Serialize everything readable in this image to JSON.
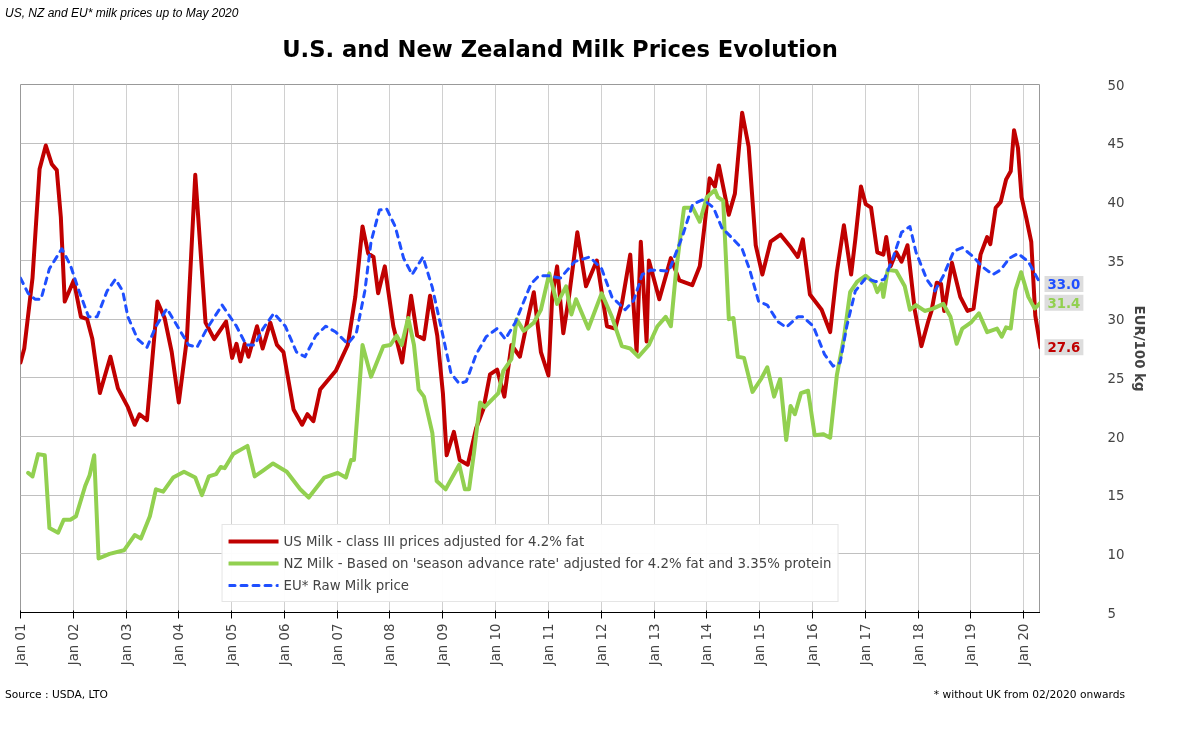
{
  "chart_data": {
    "type": "line",
    "title": "U.S. and New Zealand Milk Prices Evolution",
    "ylabel": "EUR/100 kg",
    "xlim": [
      "2001-01-01",
      "2020-04-27"
    ],
    "ylim": [
      5,
      50
    ],
    "yticks": [
      5,
      10,
      15,
      20,
      25,
      30,
      35,
      40,
      45,
      50
    ],
    "xticks": [
      {
        "value": "2001-01-01",
        "label": "Jan 01"
      },
      {
        "value": "2002-01-01",
        "label": "Jan 02"
      },
      {
        "value": "2003-01-01",
        "label": "Jan 03"
      },
      {
        "value": "2004-01-01",
        "label": "Jan 04"
      },
      {
        "value": "2005-01-01",
        "label": "Jan 05"
      },
      {
        "value": "2006-01-01",
        "label": "Jan 06"
      },
      {
        "value": "2007-01-01",
        "label": "Jan 07"
      },
      {
        "value": "2008-01-01",
        "label": "Jan 08"
      },
      {
        "value": "2009-01-01",
        "label": "Jan 09"
      },
      {
        "value": "2010-01-01",
        "label": "Jan 10"
      },
      {
        "value": "2011-01-01",
        "label": "Jan 11"
      },
      {
        "value": "2012-01-01",
        "label": "Jan 12"
      },
      {
        "value": "2013-01-01",
        "label": "Jan 13"
      },
      {
        "value": "2014-01-01",
        "label": "Jan 14"
      },
      {
        "value": "2015-01-01",
        "label": "Jan 15"
      },
      {
        "value": "2016-01-01",
        "label": "Jan 16"
      },
      {
        "value": "2017-01-01",
        "label": "Jan 17"
      },
      {
        "value": "2018-01-01",
        "label": "Jan 18"
      },
      {
        "value": "2019-01-01",
        "label": "Jan 19"
      },
      {
        "value": "2020-01-01",
        "label": "Jan 20"
      }
    ],
    "grid": true,
    "legend": "bottom",
    "series": [
      {
        "name": "US Milk - class III prices adjusted for 4.2% fat",
        "color": "#c00000",
        "line_style": "solid",
        "x": [
          "2001-01-01",
          "2001-01-27",
          "2001-03-25",
          "2001-05-13",
          "2001-06-25",
          "2001-08-06",
          "2001-09-09",
          "2001-10-07",
          "2001-11-03",
          "2002-01-04",
          "2002-02-23",
          "2002-04-07",
          "2002-05-13",
          "2002-07-04",
          "2002-09-15",
          "2002-11-06",
          "2003-01-14",
          "2003-03-02",
          "2003-04-04",
          "2003-05-26",
          "2003-08-06",
          "2003-09-25",
          "2003-11-13",
          "2004-01-01",
          "2004-02-26",
          "2004-04-24",
          "2004-07-04",
          "2004-09-02",
          "2004-11-23",
          "2005-01-04",
          "2005-02-03",
          "2005-03-02",
          "2005-04-01",
          "2005-04-27",
          "2005-06-25",
          "2005-08-03",
          "2005-09-25",
          "2005-11-10",
          "2005-12-25",
          "2006-03-05",
          "2006-05-03",
          "2006-06-09",
          "2006-07-20",
          "2006-09-05",
          "2006-12-22",
          "2007-03-15",
          "2007-05-06",
          "2007-06-25",
          "2007-08-03",
          "2007-09-09",
          "2007-10-11",
          "2007-11-26",
          "2008-01-24",
          "2008-03-25",
          "2008-05-26",
          "2008-07-07",
          "2008-08-23",
          "2008-10-04",
          "2008-11-23",
          "2009-01-01",
          "2009-01-27",
          "2009-03-18",
          "2009-04-27",
          "2009-06-22",
          "2009-08-19",
          "2009-10-07",
          "2009-11-23",
          "2010-01-11",
          "2010-03-02",
          "2010-04-20",
          "2010-06-18",
          "2010-08-06",
          "2010-09-22",
          "2010-11-10",
          "2011-01-01",
          "2011-01-27",
          "2011-03-02",
          "2011-04-14",
          "2011-05-23",
          "2011-07-20",
          "2011-09-18",
          "2011-12-02",
          "2012-02-10",
          "2012-04-07",
          "2012-05-23",
          "2012-07-20",
          "2012-09-02",
          "2012-10-01",
          "2012-11-10",
          "2012-11-26",
          "2013-02-06",
          "2013-04-27",
          "2013-06-25",
          "2013-09-22",
          "2013-11-13",
          "2013-12-18",
          "2014-01-20",
          "2014-02-26",
          "2014-03-25",
          "2014-06-02",
          "2014-07-14",
          "2014-09-02",
          "2014-10-17",
          "2014-12-05",
          "2015-01-20",
          "2015-03-18",
          "2015-05-26",
          "2015-08-06",
          "2015-09-22",
          "2015-10-27",
          "2015-12-15",
          "2016-03-05",
          "2016-05-03",
          "2016-06-18",
          "2016-08-06",
          "2016-09-25",
          "2016-10-24",
          "2016-12-02",
          "2017-01-04",
          "2017-02-10",
          "2017-03-25",
          "2017-05-06",
          "2017-05-26",
          "2017-06-25",
          "2017-08-03",
          "2017-09-09",
          "2017-10-20",
          "2017-12-09",
          "2018-01-24",
          "2018-03-12",
          "2018-04-04",
          "2018-05-10",
          "2018-06-09",
          "2018-07-01",
          "2018-08-23",
          "2018-10-20",
          "2018-12-09",
          "2019-01-20",
          "2019-03-09",
          "2019-04-24",
          "2019-05-16",
          "2019-06-22",
          "2019-07-27",
          "2019-09-02",
          "2019-10-04",
          "2019-10-27",
          "2019-11-23",
          "2019-12-18",
          "2020-01-20",
          "2020-02-23",
          "2020-03-22",
          "2020-04-27"
        ],
        "values": [
          26.3,
          27.5,
          33.5,
          42.8,
          44.8,
          43.2,
          42.7,
          38.7,
          31.5,
          33.3,
          30.2,
          30.0,
          28.3,
          23.7,
          26.8,
          24.1,
          22.5,
          21.0,
          21.9,
          21.4,
          31.5,
          30.1,
          27.2,
          22.9,
          28.3,
          42.3,
          29.7,
          28.3,
          29.8,
          26.7,
          27.9,
          26.4,
          27.9,
          26.8,
          29.4,
          27.5,
          29.7,
          27.8,
          27.2,
          22.3,
          21.0,
          21.9,
          21.3,
          24.0,
          25.6,
          27.8,
          31.9,
          37.9,
          35.6,
          35.3,
          32.2,
          34.5,
          29.4,
          26.3,
          32.0,
          28.6,
          28.3,
          32.0,
          28.6,
          23.7,
          18.4,
          20.4,
          18.0,
          17.6,
          20.7,
          22.3,
          25.3,
          25.7,
          23.4,
          27.8,
          26.8,
          29.7,
          32.3,
          27.2,
          25.2,
          31.9,
          34.5,
          28.8,
          31.9,
          37.4,
          32.8,
          35.0,
          29.4,
          29.2,
          31.3,
          35.5,
          27.2,
          36.6,
          28.1,
          35.0,
          31.7,
          35.2,
          33.3,
          32.9,
          34.5,
          38.2,
          42.0,
          41.3,
          43.1,
          38.9,
          40.7,
          47.6,
          44.7,
          36.3,
          33.8,
          36.6,
          37.2,
          36.1,
          35.3,
          36.8,
          32.1,
          30.8,
          28.9,
          34.0,
          38.0,
          33.8,
          36.8,
          41.3,
          39.8,
          39.5,
          35.7,
          35.5,
          37.0,
          34.5,
          35.7,
          34.9,
          36.3,
          30.8,
          27.7,
          29.8,
          30.7,
          33.1,
          33.0,
          30.7,
          34.8,
          31.9,
          30.7,
          30.9,
          35.5,
          37.0,
          36.4,
          39.5,
          40.0,
          41.9,
          42.6,
          46.1,
          44.6,
          40.4,
          38.6,
          36.6,
          30.3,
          27.6
        ]
      },
      {
        "name": "NZ Milk - Based on 'season advance rate' adjusted for 4.2% fat and 3.35% protein",
        "color": "#92d050",
        "line_style": "solid",
        "x": [
          "2001-02-23",
          "2001-03-25",
          "2001-05-03",
          "2001-06-18",
          "2001-07-20",
          "2001-09-18",
          "2001-10-27",
          "2001-12-12",
          "2002-01-20",
          "2002-03-25",
          "2002-04-24",
          "2002-05-26",
          "2002-06-25",
          "2002-08-03",
          "2002-09-09",
          "2002-12-18",
          "2003-03-02",
          "2003-04-14",
          "2003-06-15",
          "2003-07-27",
          "2003-09-15",
          "2003-11-23",
          "2004-02-06",
          "2004-04-24",
          "2004-06-09",
          "2004-07-27",
          "2004-09-15",
          "2004-10-17",
          "2004-11-13",
          "2005-01-11",
          "2005-04-20",
          "2005-06-09",
          "2005-08-06",
          "2005-10-14",
          "2006-01-17",
          "2006-04-20",
          "2006-06-18",
          "2006-10-04",
          "2007-01-04",
          "2007-03-02",
          "2007-04-07",
          "2007-04-27",
          "2007-06-25",
          "2007-08-23",
          "2007-11-16",
          "2008-01-04",
          "2008-02-16",
          "2008-03-22",
          "2008-05-06",
          "2008-06-15",
          "2008-07-17",
          "2008-08-23",
          "2008-10-20",
          "2008-11-19",
          "2009-01-20",
          "2009-04-24",
          "2009-06-02",
          "2009-07-01",
          "2009-08-03",
          "2009-09-15",
          "2009-10-17",
          "2010-01-20",
          "2010-02-23",
          "2010-04-20",
          "2010-05-26",
          "2010-07-14",
          "2010-09-22",
          "2010-11-10",
          "2011-01-07",
          "2011-03-02",
          "2011-05-03",
          "2011-06-09",
          "2011-07-11",
          "2011-10-04",
          "2012-01-04",
          "2012-03-15",
          "2012-05-23",
          "2012-07-20",
          "2012-09-15",
          "2012-11-26",
          "2013-01-24",
          "2013-03-22",
          "2013-04-27",
          "2013-06-02",
          "2013-07-27",
          "2013-09-25",
          "2013-11-13",
          "2014-01-01",
          "2014-02-26",
          "2014-03-18",
          "2014-04-24",
          "2014-06-02",
          "2014-07-04",
          "2014-08-03",
          "2014-09-15",
          "2014-11-13",
          "2015-01-11",
          "2015-02-23",
          "2015-04-11",
          "2015-05-23",
          "2015-07-04",
          "2015-08-03",
          "2015-09-02",
          "2015-10-14",
          "2015-12-02",
          "2016-01-17",
          "2016-03-15",
          "2016-05-03",
          "2016-06-18",
          "2016-08-06",
          "2016-09-18",
          "2016-11-06",
          "2017-01-04",
          "2017-03-02",
          "2017-03-25",
          "2017-04-24",
          "2017-05-06",
          "2017-06-05",
          "2017-08-03",
          "2017-10-01",
          "2017-11-06",
          "2017-12-18",
          "2018-02-16",
          "2018-04-14",
          "2018-06-25",
          "2018-08-13",
          "2018-09-25",
          "2018-11-03",
          "2019-01-01",
          "2019-02-26",
          "2019-04-24",
          "2019-07-01",
          "2019-08-03",
          "2019-09-02",
          "2019-10-04",
          "2019-11-06",
          "2019-12-15",
          "2020-02-03",
          "2020-03-18",
          "2020-04-27"
        ],
        "values": [
          16.9,
          16.6,
          18.5,
          18.4,
          12.2,
          11.8,
          12.9,
          12.9,
          13.2,
          15.8,
          16.7,
          18.4,
          9.6,
          9.8,
          10.0,
          10.3,
          11.6,
          11.3,
          13.2,
          15.5,
          15.3,
          16.5,
          17.0,
          16.5,
          15.0,
          16.6,
          16.8,
          17.4,
          17.3,
          18.5,
          19.2,
          16.6,
          17.1,
          17.7,
          17.0,
          15.5,
          14.8,
          16.5,
          16.9,
          16.5,
          18.0,
          18.0,
          27.8,
          25.1,
          27.7,
          27.8,
          28.6,
          27.8,
          30.1,
          27.8,
          24.0,
          23.4,
          20.3,
          16.2,
          15.5,
          17.6,
          15.5,
          15.5,
          18.5,
          22.9,
          22.5,
          23.7,
          25.6,
          26.6,
          30.0,
          29.0,
          29.7,
          30.8,
          33.9,
          31.3,
          32.8,
          30.4,
          31.7,
          29.2,
          32.2,
          30.2,
          27.7,
          27.5,
          26.8,
          27.8,
          29.4,
          30.2,
          29.4,
          34.1,
          39.5,
          39.5,
          38.3,
          40.4,
          41.0,
          40.4,
          40.1,
          30.0,
          30.1,
          26.8,
          26.7,
          23.8,
          24.9,
          25.9,
          23.4,
          24.9,
          19.7,
          22.6,
          21.9,
          23.7,
          23.9,
          20.1,
          20.2,
          19.9,
          25.2,
          28.4,
          32.3,
          33.2,
          33.7,
          33.1,
          32.3,
          33.0,
          31.9,
          34.2,
          34.1,
          32.8,
          30.8,
          31.2,
          30.7,
          30.9,
          31.3,
          30.2,
          27.9,
          29.2,
          29.7,
          30.5,
          28.9,
          29.2,
          28.5,
          29.3,
          29.2,
          32.5,
          34.0,
          31.9,
          30.9,
          31.4
        ]
      },
      {
        "name": "EU* Raw Milk price",
        "color": "#1f4fff",
        "line_style": "dashed",
        "x": [
          "2001-01-01",
          "2001-02-23",
          "2001-04-11",
          "2001-05-23",
          "2001-07-20",
          "2001-10-14",
          "2001-12-12",
          "2002-02-10",
          "2002-04-17",
          "2002-06-15",
          "2002-08-23",
          "2002-10-20",
          "2002-12-09",
          "2003-01-14",
          "2003-03-22",
          "2003-05-26",
          "2003-07-27",
          "2003-10-11",
          "2004-01-01",
          "2004-03-09",
          "2004-05-06",
          "2004-07-14",
          "2004-10-27",
          "2005-02-03",
          "2005-04-11",
          "2005-06-09",
          "2005-08-06",
          "2005-10-20",
          "2006-01-07",
          "2006-03-25",
          "2006-05-23",
          "2006-08-06",
          "2006-10-14",
          "2006-12-22",
          "2007-03-15",
          "2007-05-13",
          "2007-07-11",
          "2007-08-23",
          "2007-10-20",
          "2007-12-09",
          "2008-02-06",
          "2008-04-04",
          "2008-06-02",
          "2008-08-16",
          "2008-10-20",
          "2009-01-01",
          "2009-02-26",
          "2009-04-24",
          "2009-06-12",
          "2009-08-19",
          "2009-10-27",
          "2010-01-11",
          "2010-03-09",
          "2010-05-16",
          "2010-09-02",
          "2010-10-27",
          "2011-01-01",
          "2011-03-25",
          "2011-07-01",
          "2011-10-14",
          "2012-01-04",
          "2012-03-15",
          "2012-06-15",
          "2012-08-13",
          "2012-10-11",
          "2012-12-09",
          "2013-04-14",
          "2013-07-17",
          "2013-09-25",
          "2013-12-09",
          "2014-02-16",
          "2014-04-14",
          "2014-07-04",
          "2014-09-02",
          "2014-10-27",
          "2014-12-25",
          "2015-02-23",
          "2015-05-06",
          "2015-07-04",
          "2015-09-22",
          "2015-10-27",
          "2016-01-07",
          "2016-03-25",
          "2016-05-23",
          "2016-07-11",
          "2016-08-26",
          "2016-10-24",
          "2017-01-04",
          "2017-03-15",
          "2017-05-13",
          "2017-07-11",
          "2017-09-09",
          "2017-11-06",
          "2017-12-18",
          "2018-03-02",
          "2018-04-27",
          "2018-06-25",
          "2018-09-05",
          "2018-11-03",
          "2019-01-20",
          "2019-03-18",
          "2019-06-02",
          "2019-07-27",
          "2019-09-25",
          "2019-11-23",
          "2020-02-03",
          "2020-04-27"
        ],
        "values": [
          33.5,
          32.2,
          31.7,
          31.7,
          34.3,
          36.0,
          34.6,
          32.4,
          30.2,
          30.2,
          32.4,
          33.4,
          32.4,
          30.2,
          28.3,
          27.6,
          29.4,
          30.9,
          29.2,
          27.8,
          27.6,
          29.2,
          31.2,
          29.4,
          27.8,
          27.8,
          29.2,
          30.5,
          29.4,
          27.2,
          26.8,
          28.6,
          29.4,
          28.9,
          27.9,
          28.8,
          32.4,
          36.6,
          39.3,
          39.4,
          37.9,
          35.2,
          33.8,
          35.3,
          32.7,
          28.6,
          25.4,
          24.5,
          24.7,
          27.0,
          28.5,
          29.2,
          28.3,
          29.7,
          33.0,
          33.7,
          33.7,
          33.5,
          34.9,
          35.3,
          34.3,
          31.9,
          30.8,
          31.6,
          33.8,
          34.2,
          34.1,
          37.1,
          39.8,
          40.2,
          39.5,
          37.8,
          36.8,
          36.0,
          34.1,
          31.5,
          31.2,
          29.8,
          29.3,
          30.2,
          30.2,
          29.4,
          27.0,
          26.0,
          26.3,
          29.4,
          32.4,
          33.5,
          33.2,
          33.4,
          35.2,
          37.4,
          37.9,
          35.7,
          33.4,
          32.4,
          33.7,
          35.8,
          36.1,
          35.3,
          34.5,
          33.8,
          34.2,
          35.2,
          35.6,
          34.9,
          33.0
        ]
      }
    ],
    "annotations": [
      "US, NZ and EU* milk prices up to May 2020",
      "Source : USDA, LTO",
      "* without UK from 02/2020 onwards",
      {
        "text": "33.0",
        "x": "2020-04-27",
        "y": 33.0
      },
      {
        "text": "31.4",
        "x": "2020-04-27",
        "y": 31.4
      },
      {
        "text": "27.6",
        "x": "2020-04-27",
        "y": 27.6
      }
    ]
  }
}
